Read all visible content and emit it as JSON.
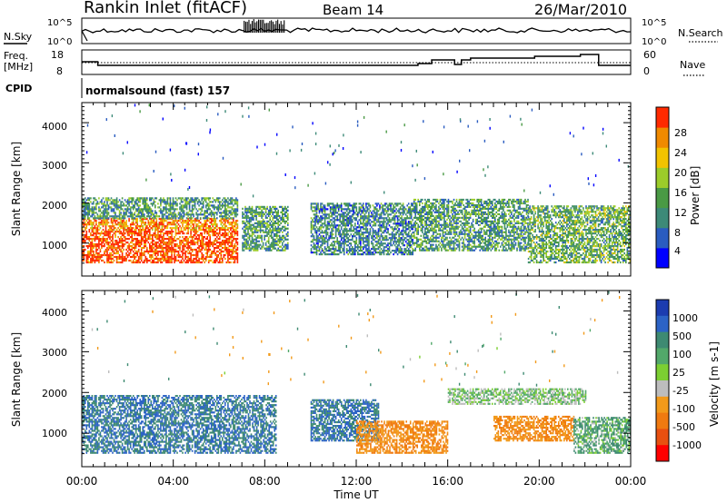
{
  "header": {
    "station": "Rankin Inlet (fitACF)",
    "beam": "Beam 14",
    "date": "26/Mar/2010"
  },
  "nsky": {
    "left_label": "N.Sky",
    "right_label": "N.Search",
    "top_tick": "10^5",
    "bottom_tick": "10^0"
  },
  "freq": {
    "left_label_1": "Freq.",
    "left_label_2": "[MHz]",
    "ticks_left": [
      "18",
      "8"
    ],
    "right_label": "Nave",
    "ticks_right": [
      "60",
      "0"
    ]
  },
  "cpid": {
    "label": "CPID",
    "value": "normalsound (fast) 157"
  },
  "xaxis": {
    "label": "Time UT",
    "ticks": [
      "00:00",
      "04:00",
      "08:00",
      "12:00",
      "16:00",
      "20:00",
      "00:00"
    ]
  },
  "power_panel": {
    "ylabel": "Slant Range [km]",
    "yticks": [
      "4000",
      "3000",
      "2000",
      "1000"
    ],
    "colorbar_label": "Power [dB]",
    "colorbar_ticks": [
      "28",
      "24",
      "20",
      "16",
      "12",
      "8",
      "4"
    ],
    "colors": [
      "#0000ff",
      "#2a5cc0",
      "#3d8a78",
      "#4a9a45",
      "#9ccc2a",
      "#f2c300",
      "#f08a00",
      "#ff2a00"
    ]
  },
  "velocity_panel": {
    "ylabel": "Slant Range [km]",
    "yticks": [
      "4000",
      "3000",
      "2000",
      "1000"
    ],
    "colorbar_label": "Velocity [m s-1]",
    "colorbar_ticks": [
      "1000",
      "500",
      "100",
      "25",
      "-25",
      "-100",
      "-500",
      "-1000"
    ],
    "colors": [
      "#1c3cb0",
      "#2c63c6",
      "#3e8a72",
      "#52a86a",
      "#7ccf32",
      "#bdbdbd",
      "#f29a1a",
      "#f07a10",
      "#e85010",
      "#ff0000"
    ]
  },
  "chart_data": {
    "type": "heatmap",
    "x_range_hours": [
      0,
      24
    ],
    "range_km": [
      180,
      4500
    ],
    "power_patches": [
      {
        "t0": 0.0,
        "t1": 6.8,
        "r0": 500,
        "r1": 1600,
        "db": 26
      },
      {
        "t0": 0.0,
        "t1": 6.8,
        "r0": 1600,
        "r1": 2100,
        "db": 12
      },
      {
        "t0": 7.0,
        "t1": 9.0,
        "r0": 800,
        "r1": 1900,
        "db": 12
      },
      {
        "t0": 10.0,
        "t1": 14.5,
        "r0": 700,
        "r1": 2000,
        "db": 10
      },
      {
        "t0": 14.5,
        "t1": 19.5,
        "r0": 800,
        "r1": 2100,
        "db": 12
      },
      {
        "t0": 19.5,
        "t1": 24.0,
        "r0": 500,
        "r1": 1900,
        "db": 14
      }
    ],
    "velocity_patches": [
      {
        "t0": 0.0,
        "t1": 8.5,
        "r0": 500,
        "r1": 1900,
        "v": 500
      },
      {
        "t0": 10.0,
        "t1": 13.0,
        "r0": 800,
        "r1": 1800,
        "v": 500
      },
      {
        "t0": 12.0,
        "t1": 16.0,
        "r0": 500,
        "r1": 1300,
        "v": -500
      },
      {
        "t0": 16.0,
        "t1": 22.0,
        "r0": 1700,
        "r1": 2100,
        "v": 0
      },
      {
        "t0": 18.0,
        "t1": 21.5,
        "r0": 800,
        "r1": 1400,
        "v": -500
      },
      {
        "t0": 21.5,
        "t1": 24.0,
        "r0": 500,
        "r1": 1400,
        "v": 100
      }
    ]
  }
}
